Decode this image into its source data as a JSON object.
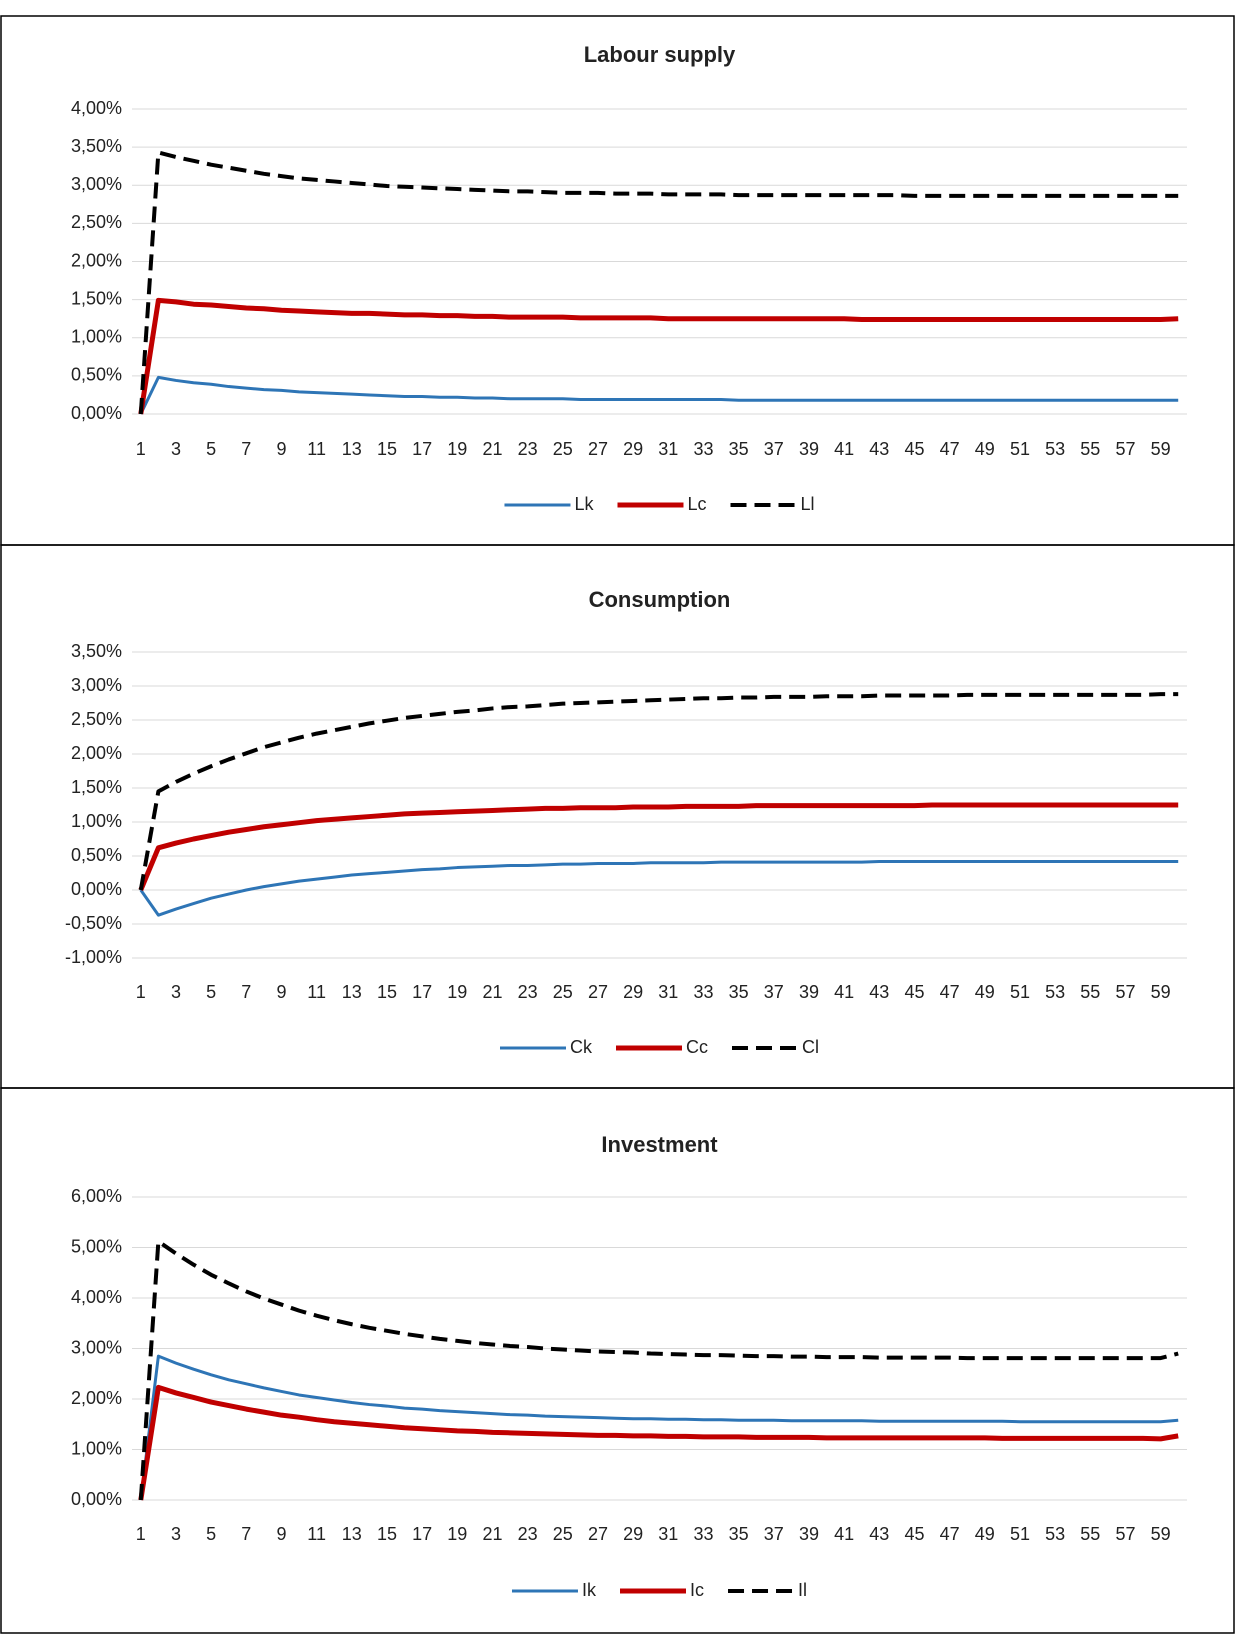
{
  "chart_data": [
    {
      "type": "line",
      "title": "Labour supply",
      "legend": "bottom",
      "grid": true,
      "x": [
        1,
        2,
        3,
        4,
        5,
        6,
        7,
        8,
        9,
        10,
        11,
        12,
        13,
        14,
        15,
        16,
        17,
        18,
        19,
        20,
        21,
        22,
        23,
        24,
        25,
        26,
        27,
        28,
        29,
        30,
        31,
        32,
        33,
        34,
        35,
        36,
        37,
        38,
        39,
        40,
        41,
        42,
        43,
        44,
        45,
        46,
        47,
        48,
        49,
        50,
        51,
        52,
        53,
        54,
        55,
        56,
        57,
        58,
        59,
        60
      ],
      "xlim": [
        0.5,
        60.5
      ],
      "xticks": [
        1,
        3,
        5,
        7,
        9,
        11,
        13,
        15,
        17,
        19,
        21,
        23,
        25,
        27,
        29,
        31,
        33,
        35,
        37,
        39,
        41,
        43,
        45,
        47,
        49,
        51,
        53,
        55,
        57,
        59
      ],
      "ylim": [
        0,
        4
      ],
      "yticks": [
        {
          "value": 0,
          "label": "0,00%"
        },
        {
          "value": 0.5,
          "label": "0,50%"
        },
        {
          "value": 1,
          "label": "1,00%"
        },
        {
          "value": 1.5,
          "label": "1,50%"
        },
        {
          "value": 2,
          "label": "2,00%"
        },
        {
          "value": 2.5,
          "label": "2,50%"
        },
        {
          "value": 3,
          "label": "3,00%"
        },
        {
          "value": 3.5,
          "label": "3,50%"
        },
        {
          "value": 4,
          "label": "4,00%"
        }
      ],
      "series": [
        {
          "name": "Lk",
          "color": "#2e75b6",
          "style": "solid",
          "values": [
            0,
            0.48,
            0.44,
            0.41,
            0.39,
            0.36,
            0.34,
            0.32,
            0.31,
            0.29,
            0.28,
            0.27,
            0.26,
            0.25,
            0.24,
            0.23,
            0.23,
            0.22,
            0.22,
            0.21,
            0.21,
            0.2,
            0.2,
            0.2,
            0.2,
            0.19,
            0.19,
            0.19,
            0.19,
            0.19,
            0.19,
            0.19,
            0.19,
            0.19,
            0.18,
            0.18,
            0.18,
            0.18,
            0.18,
            0.18,
            0.18,
            0.18,
            0.18,
            0.18,
            0.18,
            0.18,
            0.18,
            0.18,
            0.18,
            0.18,
            0.18,
            0.18,
            0.18,
            0.18,
            0.18,
            0.18,
            0.18,
            0.18,
            0.18,
            0.18
          ]
        },
        {
          "name": "Lc",
          "color": "#c00000",
          "style": "solid",
          "values": [
            0,
            1.49,
            1.47,
            1.44,
            1.43,
            1.41,
            1.39,
            1.38,
            1.36,
            1.35,
            1.34,
            1.33,
            1.32,
            1.32,
            1.31,
            1.3,
            1.3,
            1.29,
            1.29,
            1.28,
            1.28,
            1.27,
            1.27,
            1.27,
            1.27,
            1.26,
            1.26,
            1.26,
            1.26,
            1.26,
            1.25,
            1.25,
            1.25,
            1.25,
            1.25,
            1.25,
            1.25,
            1.25,
            1.25,
            1.25,
            1.25,
            1.24,
            1.24,
            1.24,
            1.24,
            1.24,
            1.24,
            1.24,
            1.24,
            1.24,
            1.24,
            1.24,
            1.24,
            1.24,
            1.24,
            1.24,
            1.24,
            1.24,
            1.24,
            1.25
          ]
        },
        {
          "name": "Ll",
          "color": "#000000",
          "style": "dashed",
          "values": [
            0,
            3.43,
            3.37,
            3.32,
            3.27,
            3.23,
            3.19,
            3.15,
            3.12,
            3.09,
            3.07,
            3.05,
            3.03,
            3.01,
            2.99,
            2.98,
            2.97,
            2.96,
            2.95,
            2.94,
            2.93,
            2.92,
            2.92,
            2.91,
            2.9,
            2.9,
            2.9,
            2.89,
            2.89,
            2.89,
            2.88,
            2.88,
            2.88,
            2.88,
            2.87,
            2.87,
            2.87,
            2.87,
            2.87,
            2.87,
            2.87,
            2.87,
            2.87,
            2.87,
            2.86,
            2.86,
            2.86,
            2.86,
            2.86,
            2.86,
            2.86,
            2.86,
            2.86,
            2.86,
            2.86,
            2.86,
            2.86,
            2.86,
            2.86,
            2.86
          ]
        }
      ]
    },
    {
      "type": "line",
      "title": "Consumption",
      "legend": "bottom",
      "grid": true,
      "x": [
        1,
        2,
        3,
        4,
        5,
        6,
        7,
        8,
        9,
        10,
        11,
        12,
        13,
        14,
        15,
        16,
        17,
        18,
        19,
        20,
        21,
        22,
        23,
        24,
        25,
        26,
        27,
        28,
        29,
        30,
        31,
        32,
        33,
        34,
        35,
        36,
        37,
        38,
        39,
        40,
        41,
        42,
        43,
        44,
        45,
        46,
        47,
        48,
        49,
        50,
        51,
        52,
        53,
        54,
        55,
        56,
        57,
        58,
        59,
        60
      ],
      "xlim": [
        0.5,
        60.5
      ],
      "xticks": [
        1,
        3,
        5,
        7,
        9,
        11,
        13,
        15,
        17,
        19,
        21,
        23,
        25,
        27,
        29,
        31,
        33,
        35,
        37,
        39,
        41,
        43,
        45,
        47,
        49,
        51,
        53,
        55,
        57,
        59
      ],
      "ylim": [
        -1,
        3.5
      ],
      "yticks": [
        {
          "value": -1,
          "label": "-1,00%"
        },
        {
          "value": -0.5,
          "label": "-0,50%"
        },
        {
          "value": 0,
          "label": "0,00%"
        },
        {
          "value": 0.5,
          "label": "0,50%"
        },
        {
          "value": 1,
          "label": "1,00%"
        },
        {
          "value": 1.5,
          "label": "1,50%"
        },
        {
          "value": 2,
          "label": "2,00%"
        },
        {
          "value": 2.5,
          "label": "2,50%"
        },
        {
          "value": 3,
          "label": "3,00%"
        },
        {
          "value": 3.5,
          "label": "3,50%"
        }
      ],
      "series": [
        {
          "name": "Ck",
          "color": "#2e75b6",
          "style": "solid",
          "values": [
            0,
            -0.37,
            -0.28,
            -0.2,
            -0.12,
            -0.06,
            0,
            0.05,
            0.09,
            0.13,
            0.16,
            0.19,
            0.22,
            0.24,
            0.26,
            0.28,
            0.3,
            0.31,
            0.33,
            0.34,
            0.35,
            0.36,
            0.36,
            0.37,
            0.38,
            0.38,
            0.39,
            0.39,
            0.39,
            0.4,
            0.4,
            0.4,
            0.4,
            0.41,
            0.41,
            0.41,
            0.41,
            0.41,
            0.41,
            0.41,
            0.41,
            0.41,
            0.42,
            0.42,
            0.42,
            0.42,
            0.42,
            0.42,
            0.42,
            0.42,
            0.42,
            0.42,
            0.42,
            0.42,
            0.42,
            0.42,
            0.42,
            0.42,
            0.42,
            0.42
          ]
        },
        {
          "name": "Cc",
          "color": "#c00000",
          "style": "solid",
          "values": [
            0,
            0.62,
            0.69,
            0.75,
            0.8,
            0.85,
            0.89,
            0.93,
            0.96,
            0.99,
            1.02,
            1.04,
            1.06,
            1.08,
            1.1,
            1.12,
            1.13,
            1.14,
            1.15,
            1.16,
            1.17,
            1.18,
            1.19,
            1.2,
            1.2,
            1.21,
            1.21,
            1.21,
            1.22,
            1.22,
            1.22,
            1.23,
            1.23,
            1.23,
            1.23,
            1.24,
            1.24,
            1.24,
            1.24,
            1.24,
            1.24,
            1.24,
            1.24,
            1.24,
            1.24,
            1.25,
            1.25,
            1.25,
            1.25,
            1.25,
            1.25,
            1.25,
            1.25,
            1.25,
            1.25,
            1.25,
            1.25,
            1.25,
            1.25,
            1.25
          ]
        },
        {
          "name": "Cl",
          "color": "#000000",
          "style": "dashed",
          "values": [
            0,
            1.45,
            1.59,
            1.71,
            1.82,
            1.92,
            2.01,
            2.1,
            2.17,
            2.24,
            2.3,
            2.35,
            2.4,
            2.45,
            2.49,
            2.53,
            2.56,
            2.59,
            2.62,
            2.64,
            2.67,
            2.69,
            2.7,
            2.72,
            2.74,
            2.75,
            2.76,
            2.77,
            2.78,
            2.79,
            2.8,
            2.81,
            2.82,
            2.82,
            2.83,
            2.83,
            2.84,
            2.84,
            2.84,
            2.85,
            2.85,
            2.85,
            2.86,
            2.86,
            2.86,
            2.86,
            2.86,
            2.87,
            2.87,
            2.87,
            2.87,
            2.87,
            2.87,
            2.87,
            2.87,
            2.87,
            2.87,
            2.87,
            2.88,
            2.88
          ]
        }
      ]
    },
    {
      "type": "line",
      "title": "Investment",
      "legend": "bottom",
      "grid": true,
      "x": [
        1,
        2,
        3,
        4,
        5,
        6,
        7,
        8,
        9,
        10,
        11,
        12,
        13,
        14,
        15,
        16,
        17,
        18,
        19,
        20,
        21,
        22,
        23,
        24,
        25,
        26,
        27,
        28,
        29,
        30,
        31,
        32,
        33,
        34,
        35,
        36,
        37,
        38,
        39,
        40,
        41,
        42,
        43,
        44,
        45,
        46,
        47,
        48,
        49,
        50,
        51,
        52,
        53,
        54,
        55,
        56,
        57,
        58,
        59,
        60
      ],
      "xlim": [
        0.5,
        60.5
      ],
      "xticks": [
        1,
        3,
        5,
        7,
        9,
        11,
        13,
        15,
        17,
        19,
        21,
        23,
        25,
        27,
        29,
        31,
        33,
        35,
        37,
        39,
        41,
        43,
        45,
        47,
        49,
        51,
        53,
        55,
        57,
        59
      ],
      "ylim": [
        0,
        6
      ],
      "yticks": [
        {
          "value": 0,
          "label": "0,00%"
        },
        {
          "value": 1,
          "label": "1,00%"
        },
        {
          "value": 2,
          "label": "2,00%"
        },
        {
          "value": 3,
          "label": "3,00%"
        },
        {
          "value": 4,
          "label": "4,00%"
        },
        {
          "value": 5,
          "label": "5,00%"
        },
        {
          "value": 6,
          "label": "6,00%"
        }
      ],
      "series": [
        {
          "name": "Ik",
          "color": "#2e75b6",
          "style": "solid",
          "values": [
            0,
            2.85,
            2.71,
            2.59,
            2.48,
            2.38,
            2.3,
            2.22,
            2.15,
            2.08,
            2.03,
            1.98,
            1.93,
            1.89,
            1.86,
            1.82,
            1.8,
            1.77,
            1.75,
            1.73,
            1.71,
            1.69,
            1.68,
            1.66,
            1.65,
            1.64,
            1.63,
            1.62,
            1.61,
            1.61,
            1.6,
            1.6,
            1.59,
            1.59,
            1.58,
            1.58,
            1.58,
            1.57,
            1.57,
            1.57,
            1.57,
            1.57,
            1.56,
            1.56,
            1.56,
            1.56,
            1.56,
            1.56,
            1.56,
            1.56,
            1.55,
            1.55,
            1.55,
            1.55,
            1.55,
            1.55,
            1.55,
            1.55,
            1.55,
            1.58
          ]
        },
        {
          "name": "Ic",
          "color": "#c00000",
          "style": "solid",
          "values": [
            0,
            2.23,
            2.12,
            2.03,
            1.94,
            1.87,
            1.8,
            1.74,
            1.68,
            1.64,
            1.59,
            1.55,
            1.52,
            1.49,
            1.46,
            1.43,
            1.41,
            1.39,
            1.37,
            1.36,
            1.34,
            1.33,
            1.32,
            1.31,
            1.3,
            1.29,
            1.28,
            1.28,
            1.27,
            1.27,
            1.26,
            1.26,
            1.25,
            1.25,
            1.25,
            1.24,
            1.24,
            1.24,
            1.24,
            1.23,
            1.23,
            1.23,
            1.23,
            1.23,
            1.23,
            1.23,
            1.23,
            1.23,
            1.23,
            1.22,
            1.22,
            1.22,
            1.22,
            1.22,
            1.22,
            1.22,
            1.22,
            1.22,
            1.21,
            1.27
          ]
        },
        {
          "name": "Il",
          "color": "#000000",
          "style": "dashed",
          "values": [
            0,
            5.12,
            4.88,
            4.66,
            4.46,
            4.29,
            4.13,
            3.99,
            3.87,
            3.75,
            3.65,
            3.56,
            3.48,
            3.41,
            3.35,
            3.29,
            3.24,
            3.19,
            3.15,
            3.11,
            3.08,
            3.05,
            3.03,
            3,
            2.98,
            2.96,
            2.94,
            2.93,
            2.92,
            2.9,
            2.89,
            2.88,
            2.87,
            2.87,
            2.86,
            2.85,
            2.85,
            2.84,
            2.84,
            2.83,
            2.83,
            2.83,
            2.82,
            2.82,
            2.82,
            2.82,
            2.82,
            2.81,
            2.81,
            2.81,
            2.81,
            2.81,
            2.81,
            2.81,
            2.81,
            2.81,
            2.81,
            2.81,
            2.81,
            2.9
          ]
        }
      ]
    }
  ]
}
